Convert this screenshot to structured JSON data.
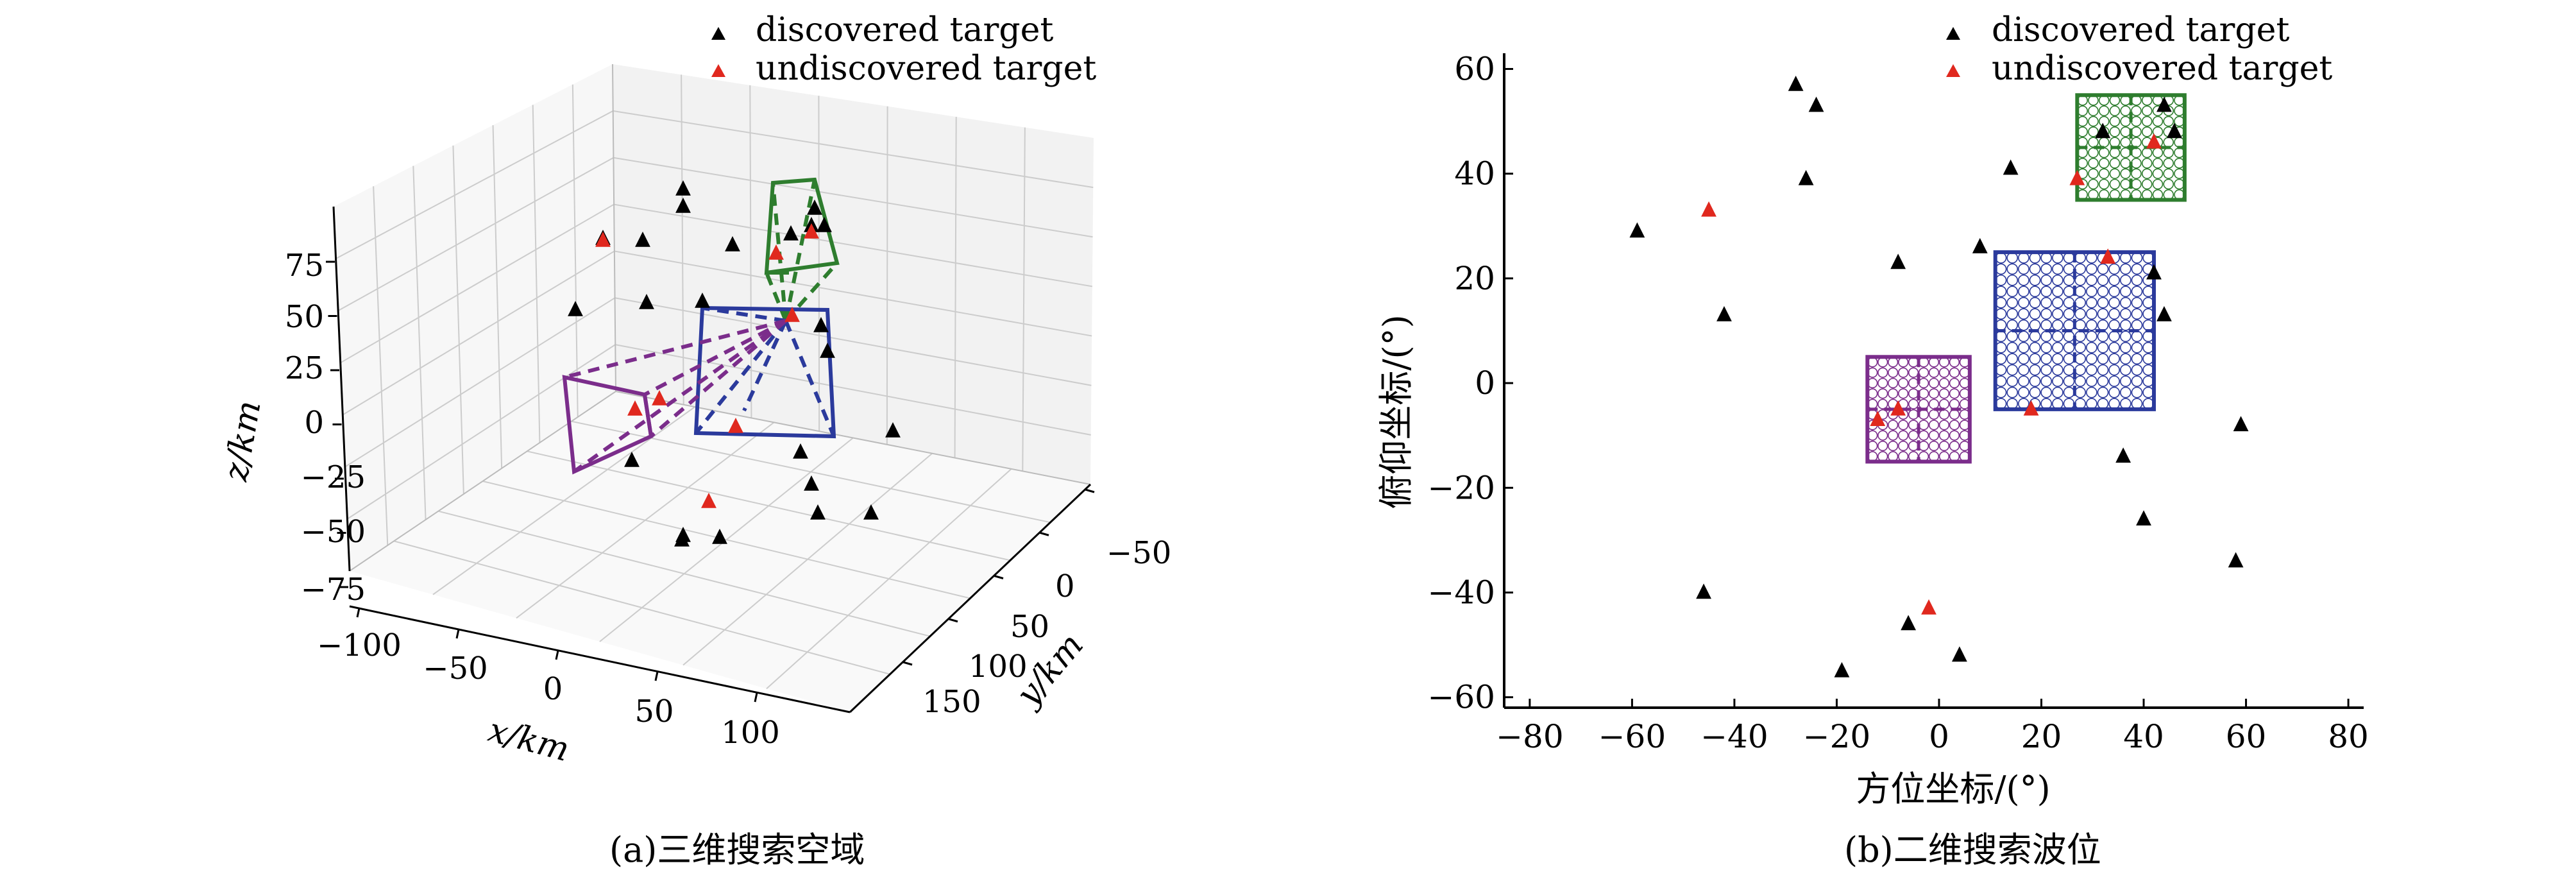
{
  "chart_data": [
    {
      "type": "scatter",
      "panel": "a",
      "caption": "(a)三维搜索空域",
      "xlabel": "x/km",
      "ylabel": "y/km",
      "zlabel": "z/km",
      "x_ticks": [
        "−100",
        "−50",
        "0",
        "50",
        "100"
      ],
      "y_ticks": [
        "−50",
        "0",
        "50",
        "100",
        "150"
      ],
      "z_ticks": [
        "75",
        "50",
        "25",
        "0",
        "−25",
        "−50",
        "−75"
      ],
      "legend": {
        "position": "top",
        "items": [
          {
            "label": "discovered target",
            "color": "#000000",
            "marker": "triangle"
          },
          {
            "label": "undiscovered target",
            "color": "#e0281e",
            "marker": "triangle"
          }
        ]
      },
      "beam_boxes": [
        {
          "name": "green",
          "color": "#2e7d2e"
        },
        {
          "name": "blue",
          "color": "#2b3a9c"
        },
        {
          "name": "purple",
          "color": "#7b2d8b"
        }
      ],
      "note": "3D projection; target positions in data units not recoverable from the picture"
    },
    {
      "type": "scatter",
      "panel": "b",
      "caption": "(b)二维搜索波位",
      "xlabel": "方位坐标/(°)",
      "ylabel": "俯仰坐标/(°)",
      "xlim": [
        -85,
        83
      ],
      "ylim": [
        -62,
        63
      ],
      "x_ticks": [
        -80,
        -60,
        -40,
        -20,
        0,
        20,
        40,
        60,
        80
      ],
      "y_ticks": [
        -60,
        -40,
        -20,
        0,
        20,
        40,
        60
      ],
      "legend": {
        "position": "top",
        "items": [
          {
            "label": "discovered target",
            "color": "#000000",
            "marker": "triangle"
          },
          {
            "label": "undiscovered target",
            "color": "#e0281e",
            "marker": "triangle"
          }
        ]
      },
      "series": [
        {
          "name": "discovered target",
          "color": "#000000",
          "points": [
            [
              -28,
              57
            ],
            [
              -24,
              53
            ],
            [
              -26,
              39
            ],
            [
              -59,
              29
            ],
            [
              -42,
              13
            ],
            [
              -8,
              23
            ],
            [
              8,
              26
            ],
            [
              14,
              41
            ],
            [
              32,
              48
            ],
            [
              44,
              53
            ],
            [
              46,
              48
            ],
            [
              42,
              21
            ],
            [
              44,
              13
            ],
            [
              59,
              -8
            ],
            [
              36,
              -14
            ],
            [
              40,
              -26
            ],
            [
              58,
              -34
            ],
            [
              -46,
              -40
            ],
            [
              -6,
              -46
            ],
            [
              4,
              -52
            ],
            [
              -19,
              -55
            ]
          ]
        },
        {
          "name": "undiscovered target",
          "color": "#e0281e",
          "points": [
            [
              -45,
              33
            ],
            [
              27,
              39
            ],
            [
              42,
              46
            ],
            [
              33,
              24
            ],
            [
              18,
              -5
            ],
            [
              -8,
              -5
            ],
            [
              -12,
              -7
            ],
            [
              -2,
              -43
            ]
          ]
        }
      ],
      "beam_boxes": [
        {
          "name": "green",
          "color": "#2e7d2e",
          "x": [
            27,
            48
          ],
          "y": [
            35,
            55
          ],
          "grid": 4
        },
        {
          "name": "blue",
          "color": "#2b3a9c",
          "x": [
            11,
            42
          ],
          "y": [
            -5,
            25
          ],
          "grid": 6
        },
        {
          "name": "purple",
          "color": "#7b2d8b",
          "x": [
            -14,
            6
          ],
          "y": [
            -15,
            5
          ],
          "grid": 4
        }
      ]
    }
  ]
}
